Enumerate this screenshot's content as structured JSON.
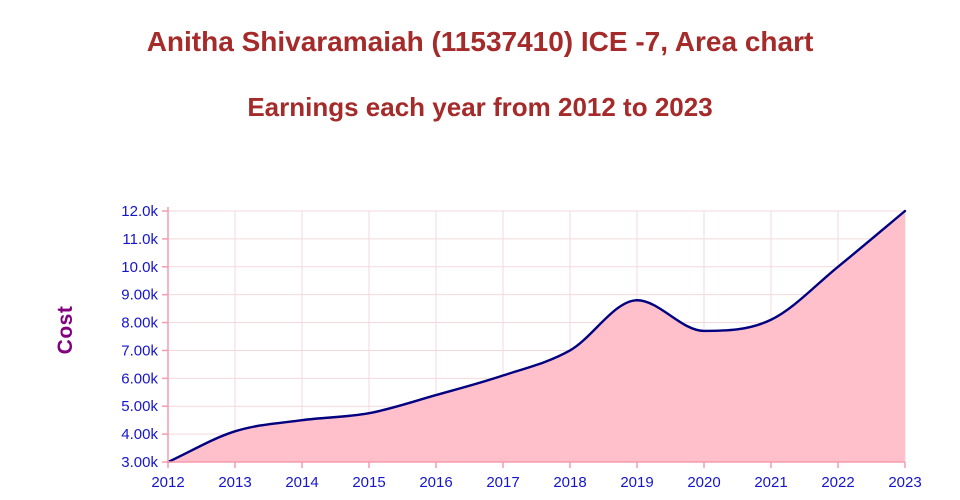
{
  "chart_data": {
    "type": "area",
    "title": "Anitha Shivaramaiah (11537410) ICE -7, Area chart",
    "subtitle": "Earnings each year from 2012 to 2023",
    "ylabel": "Cost",
    "xlabel": "",
    "categories": [
      "2012",
      "2013",
      "2014",
      "2015",
      "2016",
      "2017",
      "2018",
      "2019",
      "2020",
      "2021",
      "2022",
      "2023"
    ],
    "values": [
      3000,
      4100,
      4500,
      4750,
      5400,
      6100,
      7000,
      8800,
      7700,
      8100,
      10000,
      12000
    ],
    "ylim": [
      3000,
      12000
    ],
    "ytick_values": [
      3000,
      4000,
      5000,
      6000,
      7000,
      8000,
      9000,
      10000,
      11000,
      12000
    ],
    "ytick_labels": [
      "3.00k",
      "4.00k",
      "5.00k",
      "6.00k",
      "7.00k",
      "8.00k",
      "9.00k",
      "10.0k",
      "11.0k",
      "12.0k"
    ],
    "grid": true,
    "legend": "none",
    "colors": {
      "title": "#a52a2a",
      "ylabel_text": "#800080",
      "tick_text": "#1515cd",
      "line": "#000080",
      "area_fill": "#ffc0cb",
      "grid_line": "#f3d9dd",
      "axis_line": "#f79bb0"
    }
  }
}
